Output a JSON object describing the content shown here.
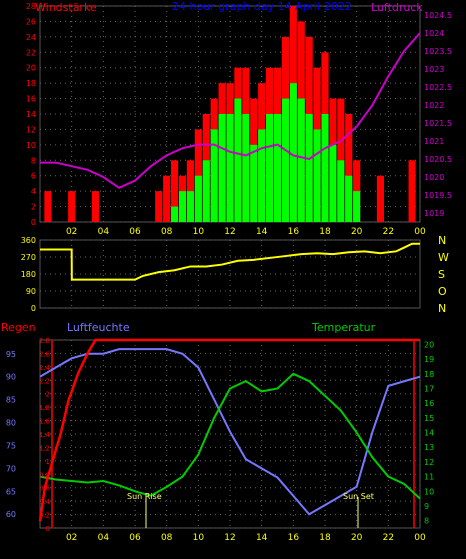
{
  "charts": {
    "wind": {
      "title": "24 hour graph day  14 April 2022",
      "left_label": "Windstärke",
      "right_label": "Luftdruck",
      "y_left_ticks": [
        "0",
        "2",
        "4",
        "6",
        "8",
        "10",
        "12",
        "14",
        "16",
        "18",
        "20",
        "22",
        "24",
        "26",
        "28"
      ],
      "y_right_ticks": [
        "1019",
        "1019.5",
        "1020",
        "1020.5",
        "1021",
        "1021.5",
        "1022",
        "1022.5",
        "1023",
        "1023.5",
        "1024",
        "1024.5"
      ],
      "x_ticks": [
        "02",
        "04",
        "06",
        "08",
        "10",
        "12",
        "14",
        "16",
        "18",
        "20",
        "22",
        "00"
      ],
      "colors": {
        "gust": "#ff0000",
        "wind": "#00ff00",
        "pressure": "#cc00cc",
        "title": "#0000ff",
        "left_label": "#ff0000",
        "right_label": "#cc00cc",
        "tick": "#ff0000"
      }
    },
    "direction": {
      "y_ticks": [
        "0",
        "90",
        "180",
        "270",
        "360"
      ],
      "compass": [
        "N",
        "W",
        "S",
        "O",
        "N"
      ],
      "colors": {
        "line": "#ffff00",
        "tick": "#ffff00"
      }
    },
    "climate": {
      "rain_label": "Regen",
      "humidity_label": "Luftfeuchte",
      "temperature_label": "Temperatur",
      "sunrise_label": "Sun Rise",
      "sunset_label": "Sun Set",
      "rain_ticks": [
        "0",
        "0.2",
        "0.4",
        "0.6",
        "0.8",
        "1",
        "1.2",
        "1.4",
        "1.6",
        "1.8",
        "2",
        "2.2",
        "2.4",
        "2.6",
        "2.8"
      ],
      "humidity_ticks": [
        "60",
        "65",
        "70",
        "75",
        "80",
        "85",
        "90",
        "95"
      ],
      "temp_ticks": [
        "8",
        "9",
        "10",
        "11",
        "12",
        "13",
        "14",
        "15",
        "16",
        "17",
        "18",
        "19",
        "20"
      ],
      "x_ticks": [
        "02",
        "04",
        "06",
        "08",
        "10",
        "12",
        "14",
        "16",
        "18",
        "20",
        "22",
        "00"
      ],
      "colors": {
        "rain": "#ff0000",
        "humidity": "#7777ff",
        "temperature": "#00cc00",
        "rain_label": "#ff0000",
        "humidity_label": "#7777ff",
        "temperature_label": "#00cc00",
        "sun": "#ffff66"
      }
    }
  },
  "chart_data": [
    {
      "type": "bar",
      "title": "24 hour graph day  14 April 2022",
      "x_unit": "hour",
      "xlim": [
        0,
        24
      ],
      "ylim": [
        0,
        28
      ],
      "y2lim": [
        1018.75,
        1024.75
      ],
      "series": [
        {
          "name": "Windstärke",
          "axis": "left",
          "x": [
            0.5,
            2.0,
            3.5,
            7.5,
            8.0,
            8.5,
            9.0,
            9.5,
            10.0,
            10.5,
            11.0,
            11.5,
            12.0,
            12.5,
            13.0,
            13.5,
            14.0,
            14.5,
            15.0,
            15.5,
            16.0,
            16.5,
            17.0,
            17.5,
            18.0,
            18.5,
            19.0,
            19.5,
            20.0,
            21.5,
            23.5
          ],
          "values": [
            4,
            4,
            4,
            4,
            6,
            8,
            6,
            8,
            12,
            14,
            16,
            18,
            18,
            20,
            20,
            16,
            18,
            20,
            20,
            24,
            28,
            26,
            24,
            20,
            22,
            16,
            16,
            14,
            8,
            6,
            8
          ]
        },
        {
          "name": "wind",
          "axis": "left",
          "x": [
            8.5,
            9.0,
            9.5,
            10.0,
            10.5,
            11.0,
            11.5,
            12.0,
            12.5,
            13.0,
            13.5,
            14.0,
            14.5,
            15.0,
            15.5,
            16.0,
            16.5,
            17.0,
            17.5,
            18.0,
            18.5,
            19.0,
            19.5,
            20.0
          ],
          "values": [
            2,
            4,
            4,
            6,
            8,
            12,
            14,
            14,
            16,
            14,
            10,
            12,
            14,
            14,
            16,
            18,
            16,
            14,
            12,
            14,
            10,
            8,
            6,
            4
          ]
        },
        {
          "name": "Luftdruck",
          "axis": "right",
          "x": [
            0,
            1,
            2,
            3,
            4,
            5,
            6,
            7,
            8,
            9,
            10,
            11,
            12,
            13,
            14,
            15,
            16,
            17,
            18,
            19,
            20,
            21,
            22,
            23,
            24
          ],
          "values": [
            1020.4,
            1020.4,
            1020.3,
            1020.2,
            1020.0,
            1019.7,
            1019.9,
            1020.3,
            1020.6,
            1020.8,
            1020.9,
            1020.9,
            1020.7,
            1020.6,
            1020.8,
            1020.9,
            1020.6,
            1020.5,
            1020.8,
            1021.0,
            1021.4,
            1022.0,
            1022.8,
            1023.5,
            1024.0
          ]
        }
      ]
    },
    {
      "type": "line",
      "x_unit": "hour",
      "xlim": [
        0,
        24
      ],
      "ylim": [
        0,
        360
      ],
      "series": [
        {
          "name": "direction",
          "x": [
            0,
            1.5,
            2.0,
            2.01,
            3,
            4,
            5,
            6,
            6.5,
            7.5,
            8.5,
            9.5,
            10.5,
            11.5,
            12.5,
            13.5,
            14.5,
            15.5,
            16.5,
            17.5,
            18.5,
            19.5,
            20.5,
            21.5,
            22.5,
            23.0,
            23.5,
            24
          ],
          "values": [
            310,
            310,
            310,
            150,
            150,
            150,
            150,
            150,
            170,
            190,
            200,
            220,
            220,
            230,
            250,
            255,
            265,
            275,
            285,
            290,
            285,
            295,
            300,
            290,
            300,
            320,
            340,
            340
          ]
        }
      ]
    },
    {
      "type": "line",
      "x_unit": "hour",
      "xlim": [
        0,
        24
      ],
      "ylim": [
        0,
        2.8
      ],
      "series": [
        {
          "name": "Regen",
          "axis": "rain",
          "x": [
            0,
            0.3,
            0.8,
            1.3,
            1.8,
            2.4,
            3.0,
            3.5,
            24
          ],
          "values": [
            0.1,
            0.6,
            1.0,
            1.4,
            1.9,
            2.3,
            2.6,
            2.8,
            2.8
          ]
        },
        {
          "name": "Luftfeuchte",
          "axis": "humidity",
          "x": [
            0,
            1,
            2,
            3,
            4,
            5,
            6,
            7,
            8,
            9,
            10,
            11,
            12,
            13,
            14,
            15,
            16,
            17,
            18,
            19,
            20,
            21,
            22,
            23,
            24
          ],
          "values": [
            90,
            92,
            94,
            95,
            95,
            96,
            96,
            96,
            96,
            95,
            92,
            85,
            78,
            72,
            70,
            68,
            64,
            60,
            62,
            64,
            66,
            78,
            88,
            89,
            90
          ]
        },
        {
          "name": "Temperatur",
          "axis": "temp",
          "x": [
            0,
            1,
            2,
            3,
            4,
            5,
            6,
            7,
            8,
            9,
            10,
            11,
            12,
            13,
            14,
            15,
            16,
            17,
            18,
            19,
            20,
            21,
            22,
            23,
            24
          ],
          "values": [
            11,
            10.8,
            10.7,
            10.6,
            10.7,
            10.4,
            10,
            9.7,
            10.3,
            11,
            12.5,
            15,
            17,
            17.5,
            16.8,
            17,
            18,
            17.5,
            16.5,
            15.5,
            14,
            12.3,
            11,
            10.5,
            9.5
          ]
        }
      ],
      "annotations": [
        "Sun Rise",
        "Sun Set"
      ]
    }
  ]
}
